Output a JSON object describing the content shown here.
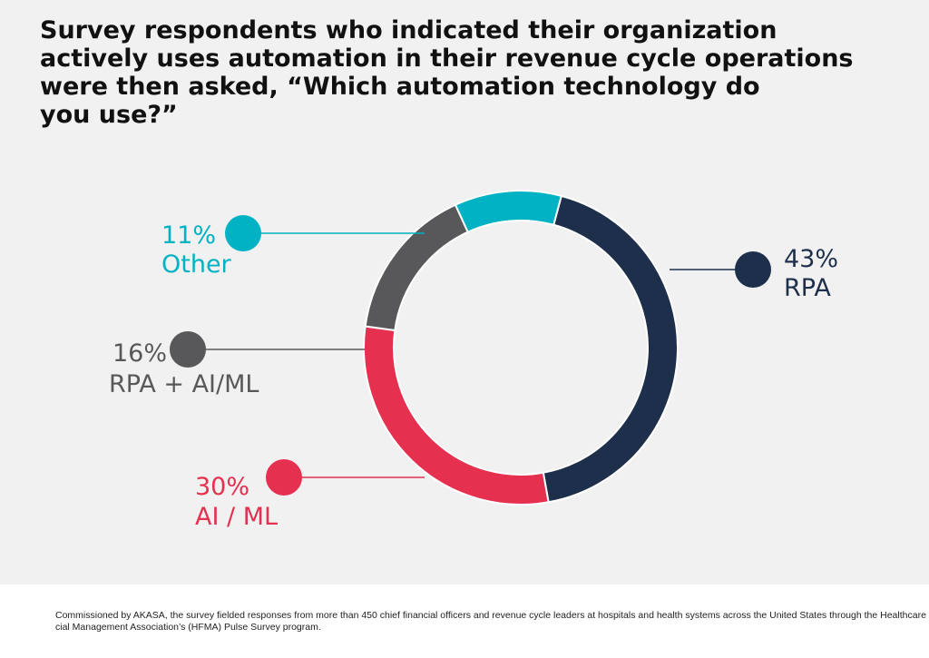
{
  "title_lines": [
    "Survey respondents who indicated their organization",
    "actively uses automation in their revenue cycle operations",
    "were then asked, “Which automation technology do",
    "you use?”"
  ],
  "chart_data": {
    "type": "pie",
    "variant": "donut",
    "categories": [
      "RPA",
      "AI / ML",
      "RPA + AI/ML",
      "Other"
    ],
    "values": [
      43,
      30,
      16,
      11
    ],
    "value_labels": [
      "43%",
      "30%",
      "16%",
      "11%"
    ],
    "colors": [
      "#1e2f4b",
      "#e6304f",
      "#58585a",
      "#00b2c3"
    ],
    "start": "top, slightly right of center, clockwise"
  },
  "footnote_lines": [
    "Commissioned by AKASA, the survey fielded responses from more than 450 chief financial officers and revenue cycle leaders at hospitals and health systems across the United States through the Healthcare Finan-",
    "cial Management Association’s (HFMA) Pulse Survey program."
  ]
}
